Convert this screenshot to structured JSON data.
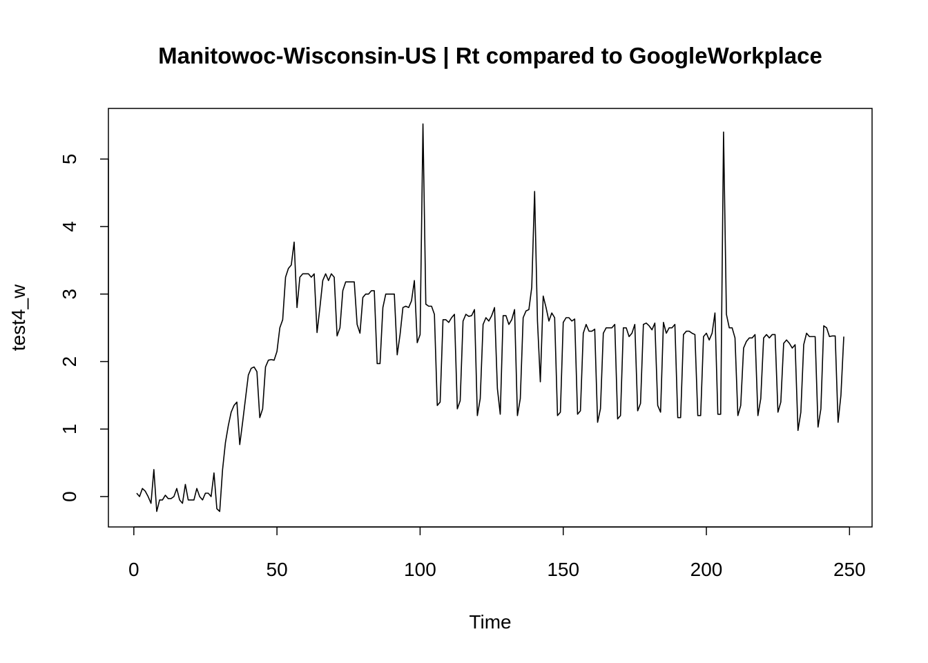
{
  "chart_data": {
    "type": "line",
    "title": "Manitowoc-Wisconsin-US | Rt compared to GoogleWorkplace",
    "x_label": "Time",
    "y_label": "test4_w",
    "color": "#000000",
    "xlim": [
      -8.88,
      257.88
    ],
    "ylim": [
      -0.45,
      5.75
    ],
    "xticks": [
      0,
      50,
      100,
      150,
      200,
      250
    ],
    "yticks": [
      0,
      1,
      2,
      3,
      4,
      5
    ],
    "x": [
      1,
      2,
      3,
      4,
      5,
      6,
      7,
      8,
      9,
      10,
      11,
      12,
      13,
      14,
      15,
      16,
      17,
      18,
      19,
      20,
      21,
      22,
      23,
      24,
      25,
      26,
      27,
      28,
      29,
      30,
      31,
      32,
      33,
      34,
      35,
      36,
      37,
      38,
      39,
      40,
      41,
      42,
      43,
      44,
      45,
      46,
      47,
      48,
      49,
      50,
      51,
      52,
      53,
      54,
      55,
      56,
      57,
      58,
      59,
      60,
      61,
      62,
      63,
      64,
      65,
      66,
      67,
      68,
      69,
      70,
      71,
      72,
      73,
      74,
      75,
      76,
      77,
      78,
      79,
      80,
      81,
      82,
      83,
      84,
      85,
      86,
      87,
      88,
      89,
      90,
      91,
      92,
      93,
      94,
      95,
      96,
      97,
      98,
      99,
      100,
      101,
      102,
      103,
      104,
      105,
      106,
      107,
      108,
      109,
      110,
      111,
      112,
      113,
      114,
      115,
      116,
      117,
      118,
      119,
      120,
      121,
      122,
      123,
      124,
      125,
      126,
      127,
      128,
      129,
      130,
      131,
      132,
      133,
      134,
      135,
      136,
      137,
      138,
      139,
      140,
      141,
      142,
      143,
      144,
      145,
      146,
      147,
      148,
      149,
      150,
      151,
      152,
      153,
      154,
      155,
      156,
      157,
      158,
      159,
      160,
      161,
      162,
      163,
      164,
      165,
      166,
      167,
      168,
      169,
      170,
      171,
      172,
      173,
      174,
      175,
      176,
      177,
      178,
      179,
      180,
      181,
      182,
      183,
      184,
      185,
      186,
      187,
      188,
      189,
      190,
      191,
      192,
      193,
      194,
      195,
      196,
      197,
      198,
      199,
      200,
      201,
      202,
      203,
      204,
      205,
      206,
      207,
      208,
      209,
      210,
      211,
      212,
      213,
      214,
      215,
      216,
      217,
      218,
      219,
      220,
      221,
      222,
      223,
      224,
      225,
      226,
      227,
      228,
      229,
      230,
      231,
      232,
      233,
      234,
      235,
      236,
      237,
      238,
      239,
      240,
      241,
      242,
      243,
      244,
      245,
      246,
      247,
      248
    ],
    "series": [
      {
        "name": "test4_w",
        "color": "#000000",
        "values": [
          0.05,
          0.0,
          0.12,
          0.08,
          0.0,
          -0.1,
          0.4,
          -0.22,
          -0.05,
          -0.05,
          0.02,
          -0.03,
          -0.03,
          0.0,
          0.12,
          -0.05,
          -0.1,
          0.18,
          -0.05,
          -0.05,
          -0.05,
          0.12,
          0.0,
          -0.05,
          0.05,
          0.05,
          0.0,
          0.35,
          -0.18,
          -0.22,
          0.4,
          0.8,
          1.05,
          1.25,
          1.35,
          1.4,
          0.77,
          1.1,
          1.45,
          1.8,
          1.9,
          1.92,
          1.85,
          1.17,
          1.3,
          1.92,
          2.02,
          2.03,
          2.02,
          2.15,
          2.5,
          2.62,
          3.25,
          3.38,
          3.43,
          3.77,
          2.8,
          3.25,
          3.3,
          3.3,
          3.3,
          3.25,
          3.3,
          2.43,
          2.8,
          3.2,
          3.3,
          3.2,
          3.3,
          3.25,
          2.38,
          2.5,
          3.05,
          3.18,
          3.18,
          3.18,
          3.18,
          2.55,
          2.42,
          2.95,
          3.0,
          3.0,
          3.05,
          3.05,
          1.97,
          1.97,
          2.8,
          3.0,
          3.0,
          3.0,
          3.0,
          2.1,
          2.4,
          2.8,
          2.82,
          2.8,
          2.9,
          3.2,
          2.28,
          2.4,
          5.52,
          2.85,
          2.82,
          2.82,
          2.7,
          1.35,
          1.4,
          2.62,
          2.62,
          2.58,
          2.65,
          2.7,
          1.3,
          1.42,
          2.6,
          2.7,
          2.67,
          2.68,
          2.77,
          1.2,
          1.45,
          2.55,
          2.65,
          2.6,
          2.68,
          2.8,
          1.6,
          1.22,
          2.68,
          2.68,
          2.55,
          2.62,
          2.77,
          1.2,
          1.45,
          2.65,
          2.75,
          2.77,
          3.1,
          4.52,
          2.6,
          1.7,
          2.97,
          2.8,
          2.6,
          2.72,
          2.65,
          1.2,
          1.25,
          2.58,
          2.65,
          2.65,
          2.6,
          2.63,
          1.22,
          1.27,
          2.42,
          2.55,
          2.45,
          2.45,
          2.48,
          1.1,
          1.3,
          2.42,
          2.5,
          2.5,
          2.5,
          2.55,
          1.15,
          1.2,
          2.5,
          2.5,
          2.37,
          2.42,
          2.55,
          1.27,
          1.38,
          2.55,
          2.57,
          2.53,
          2.47,
          2.57,
          1.35,
          1.25,
          2.58,
          2.42,
          2.5,
          2.5,
          2.55,
          1.17,
          1.17,
          2.4,
          2.45,
          2.45,
          2.42,
          2.4,
          1.2,
          1.2,
          2.37,
          2.42,
          2.32,
          2.42,
          2.72,
          1.22,
          1.22,
          5.4,
          2.7,
          2.5,
          2.5,
          2.35,
          1.2,
          1.35,
          2.2,
          2.3,
          2.35,
          2.35,
          2.4,
          1.2,
          1.45,
          2.35,
          2.4,
          2.35,
          2.4,
          2.4,
          1.25,
          1.4,
          2.27,
          2.32,
          2.27,
          2.2,
          2.25,
          0.98,
          1.25,
          2.25,
          2.42,
          2.37,
          2.37,
          2.37,
          1.03,
          1.3,
          2.53,
          2.5,
          2.37,
          2.38,
          2.38,
          1.1,
          1.5,
          2.37
        ]
      }
    ]
  }
}
